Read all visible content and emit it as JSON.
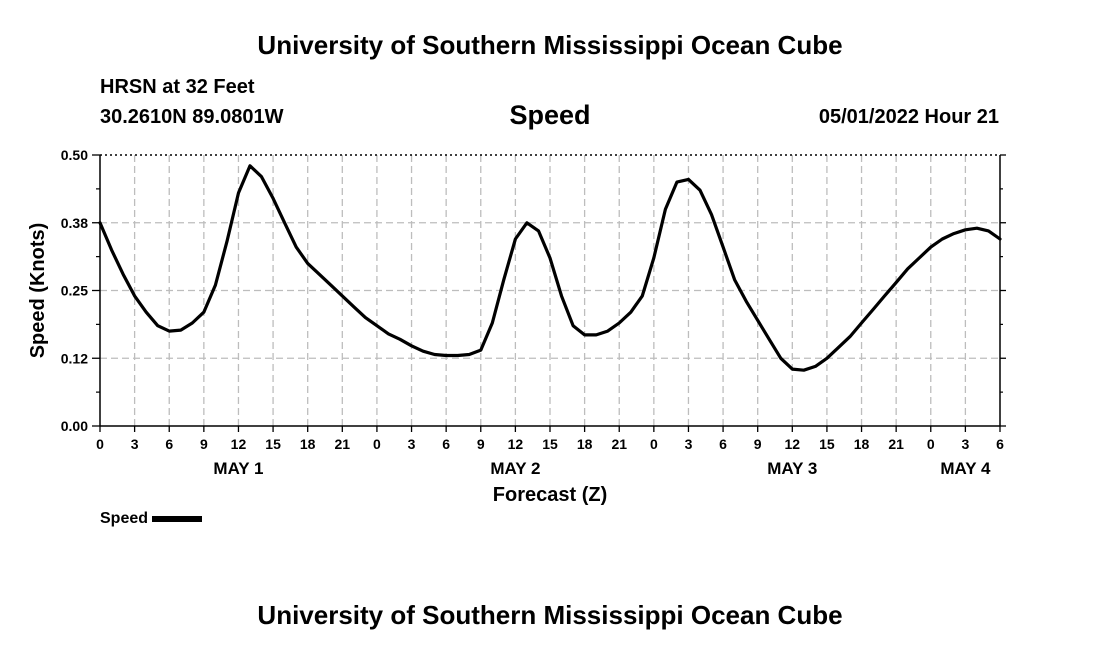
{
  "header": {
    "title": "University of Southern Mississippi Ocean Cube",
    "station": "HRSN at 32 Feet",
    "coords": "30.2610N  89.0801W",
    "date": "05/01/2022 Hour 21"
  },
  "footer": {
    "title": "University of Southern Mississippi Ocean Cube"
  },
  "chart_data": {
    "type": "line",
    "title": "Speed",
    "xlabel": "Forecast (Z)",
    "ylabel": "Speed (Knots)",
    "ylim": [
      0,
      0.5
    ],
    "yticks": [
      0,
      0.125,
      0.25,
      0.375,
      0.5
    ],
    "ytick_labels": [
      "0.00",
      "0.12",
      "0.25",
      "0.38",
      "0.50"
    ],
    "xlim": [
      0,
      78
    ],
    "xtick_labels": [
      "0",
      "3",
      "6",
      "9",
      "12",
      "15",
      "18",
      "21",
      "0",
      "3",
      "6",
      "9",
      "12",
      "15",
      "18",
      "21",
      "0",
      "3",
      "6",
      "9",
      "12",
      "15",
      "18",
      "21",
      "0",
      "3",
      "6"
    ],
    "day_labels": [
      {
        "label": "MAY 1",
        "hour": 12
      },
      {
        "label": "MAY 2",
        "hour": 36
      },
      {
        "label": "MAY 3",
        "hour": 60
      },
      {
        "label": "MAY 4",
        "hour": 75
      }
    ],
    "grid": true,
    "legend": "bottom-left",
    "series": [
      {
        "name": "Speed",
        "color": "#000000",
        "x": [
          0,
          1,
          2,
          3,
          4,
          5,
          6,
          7,
          8,
          9,
          10,
          11,
          12,
          13,
          14,
          15,
          16,
          17,
          18,
          19,
          20,
          21,
          22,
          23,
          24,
          25,
          26,
          27,
          28,
          29,
          30,
          31,
          32,
          33,
          34,
          35,
          36,
          37,
          38,
          39,
          40,
          41,
          42,
          43,
          44,
          45,
          46,
          47,
          48,
          49,
          50,
          51,
          52,
          53,
          54,
          55,
          56,
          57,
          58,
          59,
          60,
          61,
          62,
          63,
          64,
          65,
          66,
          67,
          68,
          69,
          70,
          71,
          72,
          73,
          74,
          75,
          76,
          77,
          78
        ],
        "y": [
          0.375,
          0.325,
          0.28,
          0.24,
          0.21,
          0.185,
          0.175,
          0.177,
          0.19,
          0.21,
          0.26,
          0.34,
          0.43,
          0.48,
          0.46,
          0.42,
          0.375,
          0.33,
          0.3,
          0.28,
          0.26,
          0.24,
          0.22,
          0.2,
          0.185,
          0.17,
          0.16,
          0.148,
          0.138,
          0.132,
          0.13,
          0.13,
          0.132,
          0.14,
          0.19,
          0.27,
          0.345,
          0.375,
          0.36,
          0.31,
          0.24,
          0.185,
          0.168,
          0.168,
          0.175,
          0.19,
          0.21,
          0.24,
          0.31,
          0.4,
          0.45,
          0.455,
          0.435,
          0.39,
          0.33,
          0.27,
          0.23,
          0.195,
          0.16,
          0.125,
          0.105,
          0.103,
          0.11,
          0.125,
          0.145,
          0.165,
          0.19,
          0.215,
          0.24,
          0.265,
          0.29,
          0.31,
          0.33,
          0.345,
          0.355,
          0.362,
          0.365,
          0.36,
          0.345
        ]
      }
    ]
  }
}
